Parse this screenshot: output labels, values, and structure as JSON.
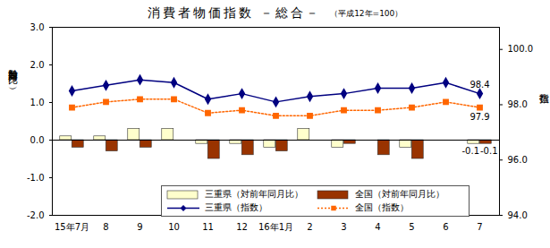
{
  "chart_data": {
    "type": "bar",
    "title": "消費者物価指数 －総合－",
    "subtitle": "（平成12年=100）",
    "y_label": "対前年同月比（%）",
    "y2_label": "指数",
    "categories": [
      "15年7月",
      "8",
      "9",
      "10",
      "11",
      "12",
      "16年1月",
      "2",
      "3",
      "4",
      "5",
      "6",
      "7"
    ],
    "series": [
      {
        "name": "三重県（対前年同月比）",
        "type": "bar",
        "color": "#ffffcc",
        "values": [
          0.1,
          0.1,
          0.3,
          0.3,
          -0.1,
          -0.1,
          -0.2,
          0.3,
          -0.2,
          0.0,
          -0.2,
          0.0,
          -0.1
        ]
      },
      {
        "name": "全国（対前年同月比）",
        "type": "bar",
        "color": "#993300",
        "values": [
          -0.2,
          -0.3,
          -0.2,
          0.0,
          -0.5,
          -0.4,
          -0.3,
          0.0,
          -0.1,
          -0.4,
          -0.5,
          0.0,
          -0.1
        ]
      },
      {
        "name": "三重県（指数）",
        "type": "line",
        "axis": "y2",
        "color": "#000080",
        "marker": "diamond",
        "line_style": "solid",
        "values": [
          98.5,
          98.7,
          98.9,
          98.8,
          98.2,
          98.4,
          98.1,
          98.3,
          98.4,
          98.6,
          98.6,
          98.8,
          98.4
        ]
      },
      {
        "name": "全国（指数）",
        "type": "line",
        "axis": "y2",
        "color": "#ff6600",
        "marker": "square",
        "line_style": "dotted",
        "values": [
          97.9,
          98.1,
          98.2,
          98.2,
          97.7,
          97.8,
          97.6,
          97.6,
          97.8,
          97.8,
          97.9,
          98.1,
          97.9
        ]
      }
    ],
    "ylim": [
      -2,
      3
    ],
    "yticks": [
      {
        "value": -2,
        "label": "-2.0"
      },
      {
        "value": -1,
        "label": "-1.0"
      },
      {
        "value": 0,
        "label": "0.0"
      },
      {
        "value": 1,
        "label": "1.0"
      },
      {
        "value": 2,
        "label": "2.0"
      },
      {
        "value": 3,
        "label": "3.0"
      }
    ],
    "y2lim": [
      94,
      100.8
    ],
    "y2ticks": [
      {
        "value": 94,
        "label": "94.0"
      },
      {
        "value": 96,
        "label": "96.0"
      },
      {
        "value": 98,
        "label": "98.0"
      },
      {
        "value": 100,
        "label": "100.0"
      }
    ],
    "grid": false,
    "legend": "bottom",
    "annotations": [
      {
        "text": "98.4",
        "series": "三重県（指数）",
        "category": "7"
      },
      {
        "text": "97.9",
        "series": "全国（指数）",
        "category": "7"
      },
      {
        "text": "-0.1",
        "series": "三重県（対前年同月比）",
        "category": "7"
      },
      {
        "text": "-0.1",
        "series": "全国（対前年同月比）",
        "category": "7"
      }
    ]
  }
}
